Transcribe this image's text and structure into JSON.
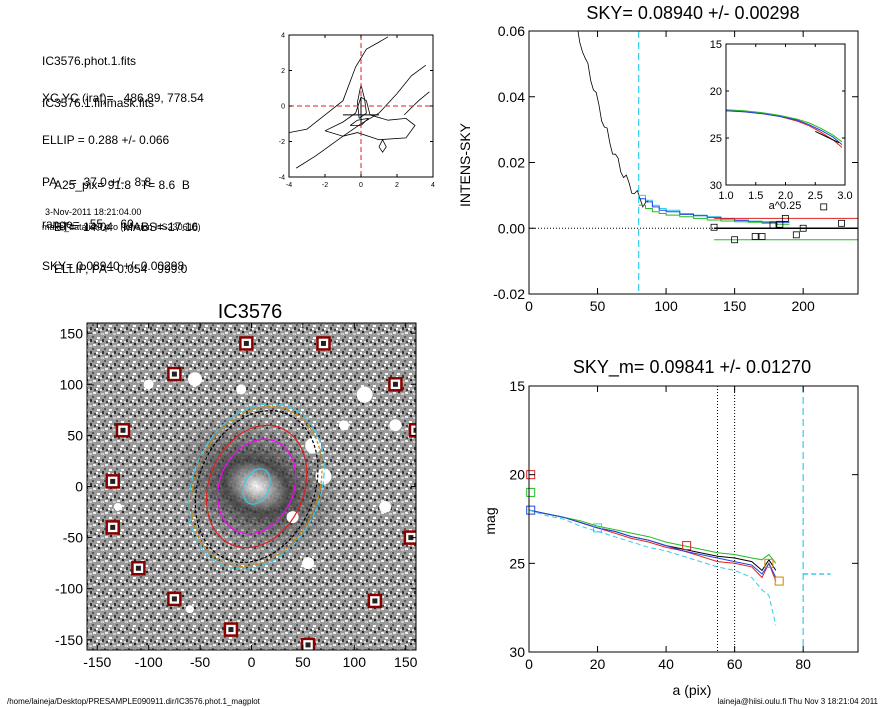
{
  "header": {
    "files": [
      "IC3576.phot.1.fits",
      "IC3576.1.finmask.fits"
    ],
    "params": [
      "XC,YC (iraf)=   486.89, 778.54",
      "ELLIP = 0.288 +/- 0.066",
      "PA    =  37.0 +/-   8.8",
      "range=   55.-   60.",
      "SKY= 0.08940 +/- 0.00298"
    ],
    "galaxy": [
      "A25_pix= 91.8   T= 8.6  B",
      "BT=  14.04   MABS=-17.16",
      "ELLIP, PA= 0.054   999.0"
    ],
    "timestamp": "3-Nov-2011 18:21:04.00",
    "program": "make_datalist0.pro (version HS230610)"
  },
  "footer": {
    "left": "/home/laineja/Desktop/PRESAMPLE090911.dir/IC3576.phot.1_magplot",
    "right": "laineja@hiisi.oulu.fi  Thu Nov  3 18:21:04 2011"
  },
  "colors": {
    "red": "#dd2222",
    "green": "#22bb22",
    "blue": "#2244dd",
    "cyan": "#33ccee",
    "orange": "#cc8800",
    "black": "#000000",
    "frame": "#880000"
  },
  "chart_data": [
    {
      "id": "contour",
      "type": "contour",
      "title": "",
      "xlabel": "",
      "ylabel": "",
      "xlim": [
        -4,
        4
      ],
      "ylim": [
        -4,
        4
      ],
      "xticks": [
        -4,
        -2,
        0,
        2,
        4
      ],
      "yticks": [
        -4,
        -2,
        0,
        2,
        4
      ],
      "contours": [
        [
          [
            -4,
            -1.5
          ],
          [
            -3,
            -1.3
          ],
          [
            -2,
            -0.5
          ],
          [
            -1,
            0.3
          ],
          [
            -0.3,
            2.2
          ],
          [
            0.3,
            3.2
          ],
          [
            1,
            3.6
          ],
          [
            1.5,
            3.9
          ]
        ],
        [
          [
            -3.6,
            -3.5
          ],
          [
            -2.5,
            -2.8
          ],
          [
            -1,
            -1.7
          ],
          [
            0,
            -1
          ],
          [
            1,
            -0.4
          ],
          [
            2,
            0.7
          ],
          [
            2.8,
            1.7
          ],
          [
            3.6,
            2.3
          ]
        ],
        [
          [
            -2,
            -1.4
          ],
          [
            -1,
            -0.9
          ],
          [
            -0.3,
            -0.4
          ],
          [
            0,
            0.5
          ],
          [
            0.3,
            0.3
          ],
          [
            0.5,
            -0.5
          ],
          [
            1.5,
            -0.8
          ],
          [
            2.5,
            -0.7
          ],
          [
            3,
            -1.1
          ],
          [
            2.5,
            -1.8
          ],
          [
            1,
            -1.9
          ],
          [
            -0.2,
            -1.5
          ],
          [
            -1,
            -1.7
          ],
          [
            -2,
            -1.4
          ]
        ],
        [
          [
            -0.1,
            -0.7
          ],
          [
            -0.2,
            0.2
          ],
          [
            0,
            1.2
          ],
          [
            0.2,
            0.4
          ],
          [
            0.3,
            -0.4
          ],
          [
            -0.1,
            -0.7
          ]
        ],
        [
          [
            1,
            -2.3
          ],
          [
            1.2,
            -1.9
          ],
          [
            1.4,
            -2.3
          ],
          [
            1.2,
            -2.6
          ],
          [
            1,
            -2.3
          ]
        ],
        [
          [
            -0.6,
            -1.1
          ],
          [
            -0.2,
            -0.8
          ],
          [
            0.4,
            -0.7
          ],
          [
            0,
            -1.1
          ],
          [
            -0.6,
            -1.1
          ]
        ],
        [
          [
            2.4,
            -0.5
          ],
          [
            3.2,
            0.3
          ],
          [
            3.8,
            0.8
          ]
        ]
      ],
      "cross": [
        0,
        0
      ]
    },
    {
      "id": "sky",
      "type": "line",
      "title": "SKY= 0.08940 +/- 0.00298",
      "xlabel": "",
      "ylabel": "INTENS-SKY",
      "xlim": [
        0,
        240
      ],
      "ylim": [
        -0.02,
        0.06
      ],
      "xticks": [
        0,
        50,
        100,
        150,
        200
      ],
      "yticks": [
        -0.02,
        0.0,
        0.02,
        0.04,
        0.06
      ],
      "ytick_labels": [
        "-0.02",
        "0.00",
        "0.02",
        "0.04",
        "0.06"
      ],
      "vline": 80,
      "intensity_profile": {
        "x": [
          33,
          35,
          37,
          39,
          41,
          43,
          45,
          47,
          49,
          51,
          53,
          55,
          57,
          59,
          61,
          63,
          65,
          67,
          69,
          71,
          73,
          75,
          77,
          79,
          81,
          83,
          85,
          87
        ],
        "y": [
          0.066,
          0.0605,
          0.057,
          0.055,
          0.051,
          0.049,
          0.046,
          0.043,
          0.04,
          0.037,
          0.034,
          0.031,
          0.029,
          0.026,
          0.024,
          0.022,
          0.02,
          0.018,
          0.0165,
          0.015,
          0.013,
          0.012,
          0.011,
          0.01,
          0.009,
          0.008,
          0.0075,
          0.007
        ]
      },
      "step_series": [
        {
          "color": "cyan",
          "steps": [
            [
              80,
              0.01
            ],
            [
              85,
              0.0085
            ],
            [
              90,
              0.007
            ],
            [
              95,
              0.006
            ],
            [
              100,
              0.0055
            ],
            [
              110,
              0.0045
            ],
            [
              120,
              0.004
            ],
            [
              130,
              0.0035
            ],
            [
              140,
              0.003
            ],
            [
              150,
              0.0025
            ],
            [
              160,
              0.0022
            ],
            [
              170,
              0.002
            ],
            [
              180,
              0.002
            ]
          ]
        },
        {
          "color": "blue",
          "steps": [
            [
              80,
              0.009
            ],
            [
              85,
              0.008
            ],
            [
              90,
              0.0065
            ],
            [
              95,
              0.0055
            ],
            [
              100,
              0.005
            ],
            [
              110,
              0.0042
            ],
            [
              120,
              0.0038
            ],
            [
              130,
              0.0033
            ],
            [
              140,
              0.0028
            ],
            [
              150,
              0.0024
            ],
            [
              160,
              0.002
            ],
            [
              170,
              0.0018
            ],
            [
              180,
              0.0018
            ]
          ]
        },
        {
          "color": "green",
          "steps": [
            [
              80,
              0.007
            ],
            [
              85,
              0.006
            ],
            [
              90,
              0.005
            ],
            [
              95,
              0.0045
            ],
            [
              100,
              0.004
            ],
            [
              110,
              0.0035
            ],
            [
              120,
              0.003
            ],
            [
              130,
              0.0025
            ],
            [
              140,
              0.0022
            ],
            [
              150,
              0.002
            ],
            [
              160,
              0.0018
            ],
            [
              170,
              0.0015
            ],
            [
              180,
              0.0012
            ]
          ]
        }
      ],
      "hlines": [
        {
          "y": 0.003,
          "color": "red",
          "x0": 135,
          "x1": 240
        },
        {
          "y": 0.0,
          "color": "black",
          "x0": 135,
          "x1": 240
        },
        {
          "y": -0.0035,
          "color": "green",
          "x0": 135,
          "x1": 240
        }
      ],
      "scatter_points": {
        "x": [
          135,
          150,
          165,
          170,
          178,
          183,
          187,
          195,
          200,
          215,
          228
        ],
        "y": [
          0.0003,
          -0.0035,
          -0.0025,
          -0.0025,
          0.001,
          0.0012,
          0.003,
          -0.002,
          0.0,
          0.0065,
          0.0015
        ]
      },
      "inset": {
        "type": "line",
        "xlabel": "a^0.25",
        "ylabel": "",
        "xlim": [
          1.0,
          3.0
        ],
        "ylim": [
          30,
          15
        ],
        "xticks": [
          1.0,
          1.5,
          2.0,
          2.5,
          3.0
        ],
        "xtick_labels": [
          "1.0",
          "1.5",
          "2.0",
          "2.5",
          "3.0"
        ],
        "yticks": [
          15,
          20,
          25,
          30
        ],
        "series": [
          {
            "color": "red",
            "x": [
              1.0,
              1.3,
              1.6,
              1.9,
              2.2,
              2.4,
              2.6,
              2.8,
              2.95
            ],
            "y": [
              22.1,
              22.2,
              22.4,
              22.7,
              23.2,
              23.7,
              24.4,
              25.2,
              26.0
            ]
          },
          {
            "color": "green",
            "x": [
              1.0,
              1.3,
              1.6,
              1.9,
              2.2,
              2.4,
              2.6,
              2.8,
              2.95
            ],
            "y": [
              22.0,
              22.1,
              22.3,
              22.6,
              23.0,
              23.4,
              24.0,
              24.7,
              25.4
            ]
          },
          {
            "color": "blue",
            "x": [
              1.0,
              1.3,
              1.6,
              1.9,
              2.2,
              2.4,
              2.6,
              2.8,
              2.95
            ],
            "y": [
              22.1,
              22.2,
              22.4,
              22.7,
              23.1,
              23.6,
              24.2,
              24.9,
              25.7
            ]
          },
          {
            "color": "black",
            "x": [
              2.5,
              2.7,
              2.9
            ],
            "y": [
              24.3,
              24.9,
              25.5
            ]
          }
        ]
      }
    },
    {
      "id": "image",
      "type": "image",
      "title": "IC3576",
      "xlabel": "",
      "ylabel": "",
      "xlim": [
        -160,
        160
      ],
      "ylim": [
        -160,
        160
      ],
      "xticks": [
        -150,
        -100,
        -50,
        0,
        50,
        100,
        150
      ],
      "yticks": [
        -150,
        -100,
        -50,
        0,
        50,
        100,
        150
      ],
      "stars": [
        [
          -5,
          140
        ],
        [
          70,
          140
        ],
        [
          -75,
          110
        ],
        [
          140,
          100
        ],
        [
          -125,
          55
        ],
        [
          160,
          55
        ],
        [
          -135,
          5
        ],
        [
          -135,
          -40
        ],
        [
          155,
          -50
        ],
        [
          -110,
          -80
        ],
        [
          -75,
          -110
        ],
        [
          120,
          -112
        ],
        [
          -20,
          -140
        ],
        [
          55,
          -155
        ]
      ],
      "ellipses": [
        {
          "cx": 5,
          "cy": 0,
          "a": 62,
          "b": 84,
          "angle": 37,
          "color": "cyan"
        },
        {
          "cx": 5,
          "cy": 0,
          "a": 60,
          "b": 81,
          "angle": 37,
          "color": "orange"
        },
        {
          "cx": 5,
          "cy": 0,
          "a": 56,
          "b": 77,
          "angle": 37,
          "color": "black"
        },
        {
          "cx": 5,
          "cy": 0,
          "a": 46,
          "b": 62,
          "angle": 37,
          "color": "red"
        },
        {
          "cx": 5,
          "cy": 0,
          "a": 36,
          "b": 48,
          "angle": 37,
          "color": "magenta"
        },
        {
          "cx": 5,
          "cy": 0,
          "a": 12,
          "b": 18,
          "angle": 37,
          "color": "cyan"
        }
      ]
    },
    {
      "id": "mag",
      "type": "line",
      "title": "SKY_m=  0.09841 +/- 0.01270",
      "xlabel": "a (pix)",
      "ylabel": "mag",
      "xlim": [
        0,
        96
      ],
      "ylim": [
        30,
        15
      ],
      "xticks": [
        0,
        20,
        40,
        60,
        80
      ],
      "yticks": [
        15,
        20,
        25,
        30
      ],
      "vlines_dotted": [
        55,
        60
      ],
      "vline_dashed": 80,
      "series": [
        {
          "color": "black",
          "x": [
            0,
            5,
            10,
            15,
            20,
            25,
            30,
            35,
            40,
            45,
            50,
            55,
            60,
            65,
            68,
            70,
            72
          ],
          "y": [
            22.0,
            22.2,
            22.4,
            22.7,
            23.0,
            23.2,
            23.5,
            23.7,
            24.0,
            24.2,
            24.4,
            24.6,
            24.7,
            24.9,
            25.4,
            24.8,
            25.4
          ]
        },
        {
          "color": "red",
          "x": [
            0,
            5,
            10,
            15,
            20,
            25,
            30,
            35,
            40,
            45,
            50,
            55,
            60,
            65,
            68,
            70,
            72
          ],
          "y": [
            22.0,
            22.2,
            22.4,
            22.7,
            23.0,
            23.3,
            23.6,
            23.8,
            24.1,
            24.3,
            24.6,
            24.9,
            25.0,
            25.2,
            25.8,
            25.0,
            26.0
          ]
        },
        {
          "color": "green",
          "x": [
            0,
            5,
            10,
            15,
            20,
            25,
            30,
            35,
            40,
            45,
            50,
            55,
            60,
            65,
            68,
            70,
            72
          ],
          "y": [
            22.0,
            22.2,
            22.4,
            22.6,
            22.9,
            23.1,
            23.3,
            23.5,
            23.8,
            24.0,
            24.2,
            24.4,
            24.5,
            24.7,
            24.8,
            24.5,
            25.0
          ]
        },
        {
          "color": "blue",
          "x": [
            0,
            5,
            10,
            15,
            20,
            25,
            30,
            35,
            40,
            45,
            50,
            55,
            60,
            65,
            68,
            70,
            72
          ],
          "y": [
            22.0,
            22.2,
            22.4,
            22.7,
            23.0,
            23.2,
            23.5,
            23.7,
            24.0,
            24.3,
            24.5,
            24.7,
            24.9,
            25.1,
            25.6,
            25.0,
            25.8
          ]
        },
        {
          "color": "cyan",
          "x": [
            0,
            5,
            10,
            15,
            20,
            25,
            30,
            35,
            40,
            45,
            50,
            55,
            60,
            65,
            68,
            70,
            72
          ],
          "y": [
            22.0,
            22.3,
            22.5,
            22.9,
            23.2,
            23.5,
            23.8,
            24.1,
            24.3,
            24.6,
            24.9,
            25.2,
            25.4,
            25.8,
            26.5,
            26.8,
            28.5
          ]
        }
      ],
      "markers": [
        {
          "color": "red",
          "x": 0.5,
          "y": 20.0
        },
        {
          "color": "green",
          "x": 0.5,
          "y": 21.0
        },
        {
          "color": "blue",
          "x": 0.5,
          "y": 22.0
        },
        {
          "color": "cyan",
          "x": 20,
          "y": 23.0
        },
        {
          "color": "red",
          "x": 46,
          "y": 24.0
        },
        {
          "color": "orange",
          "x": 70,
          "y": 25.0
        },
        {
          "color": "orange",
          "x": 73,
          "y": 26.0
        }
      ],
      "sky_segment": {
        "color": "cyan",
        "x0": 80,
        "x1": 88,
        "y": 25.6
      }
    }
  ]
}
